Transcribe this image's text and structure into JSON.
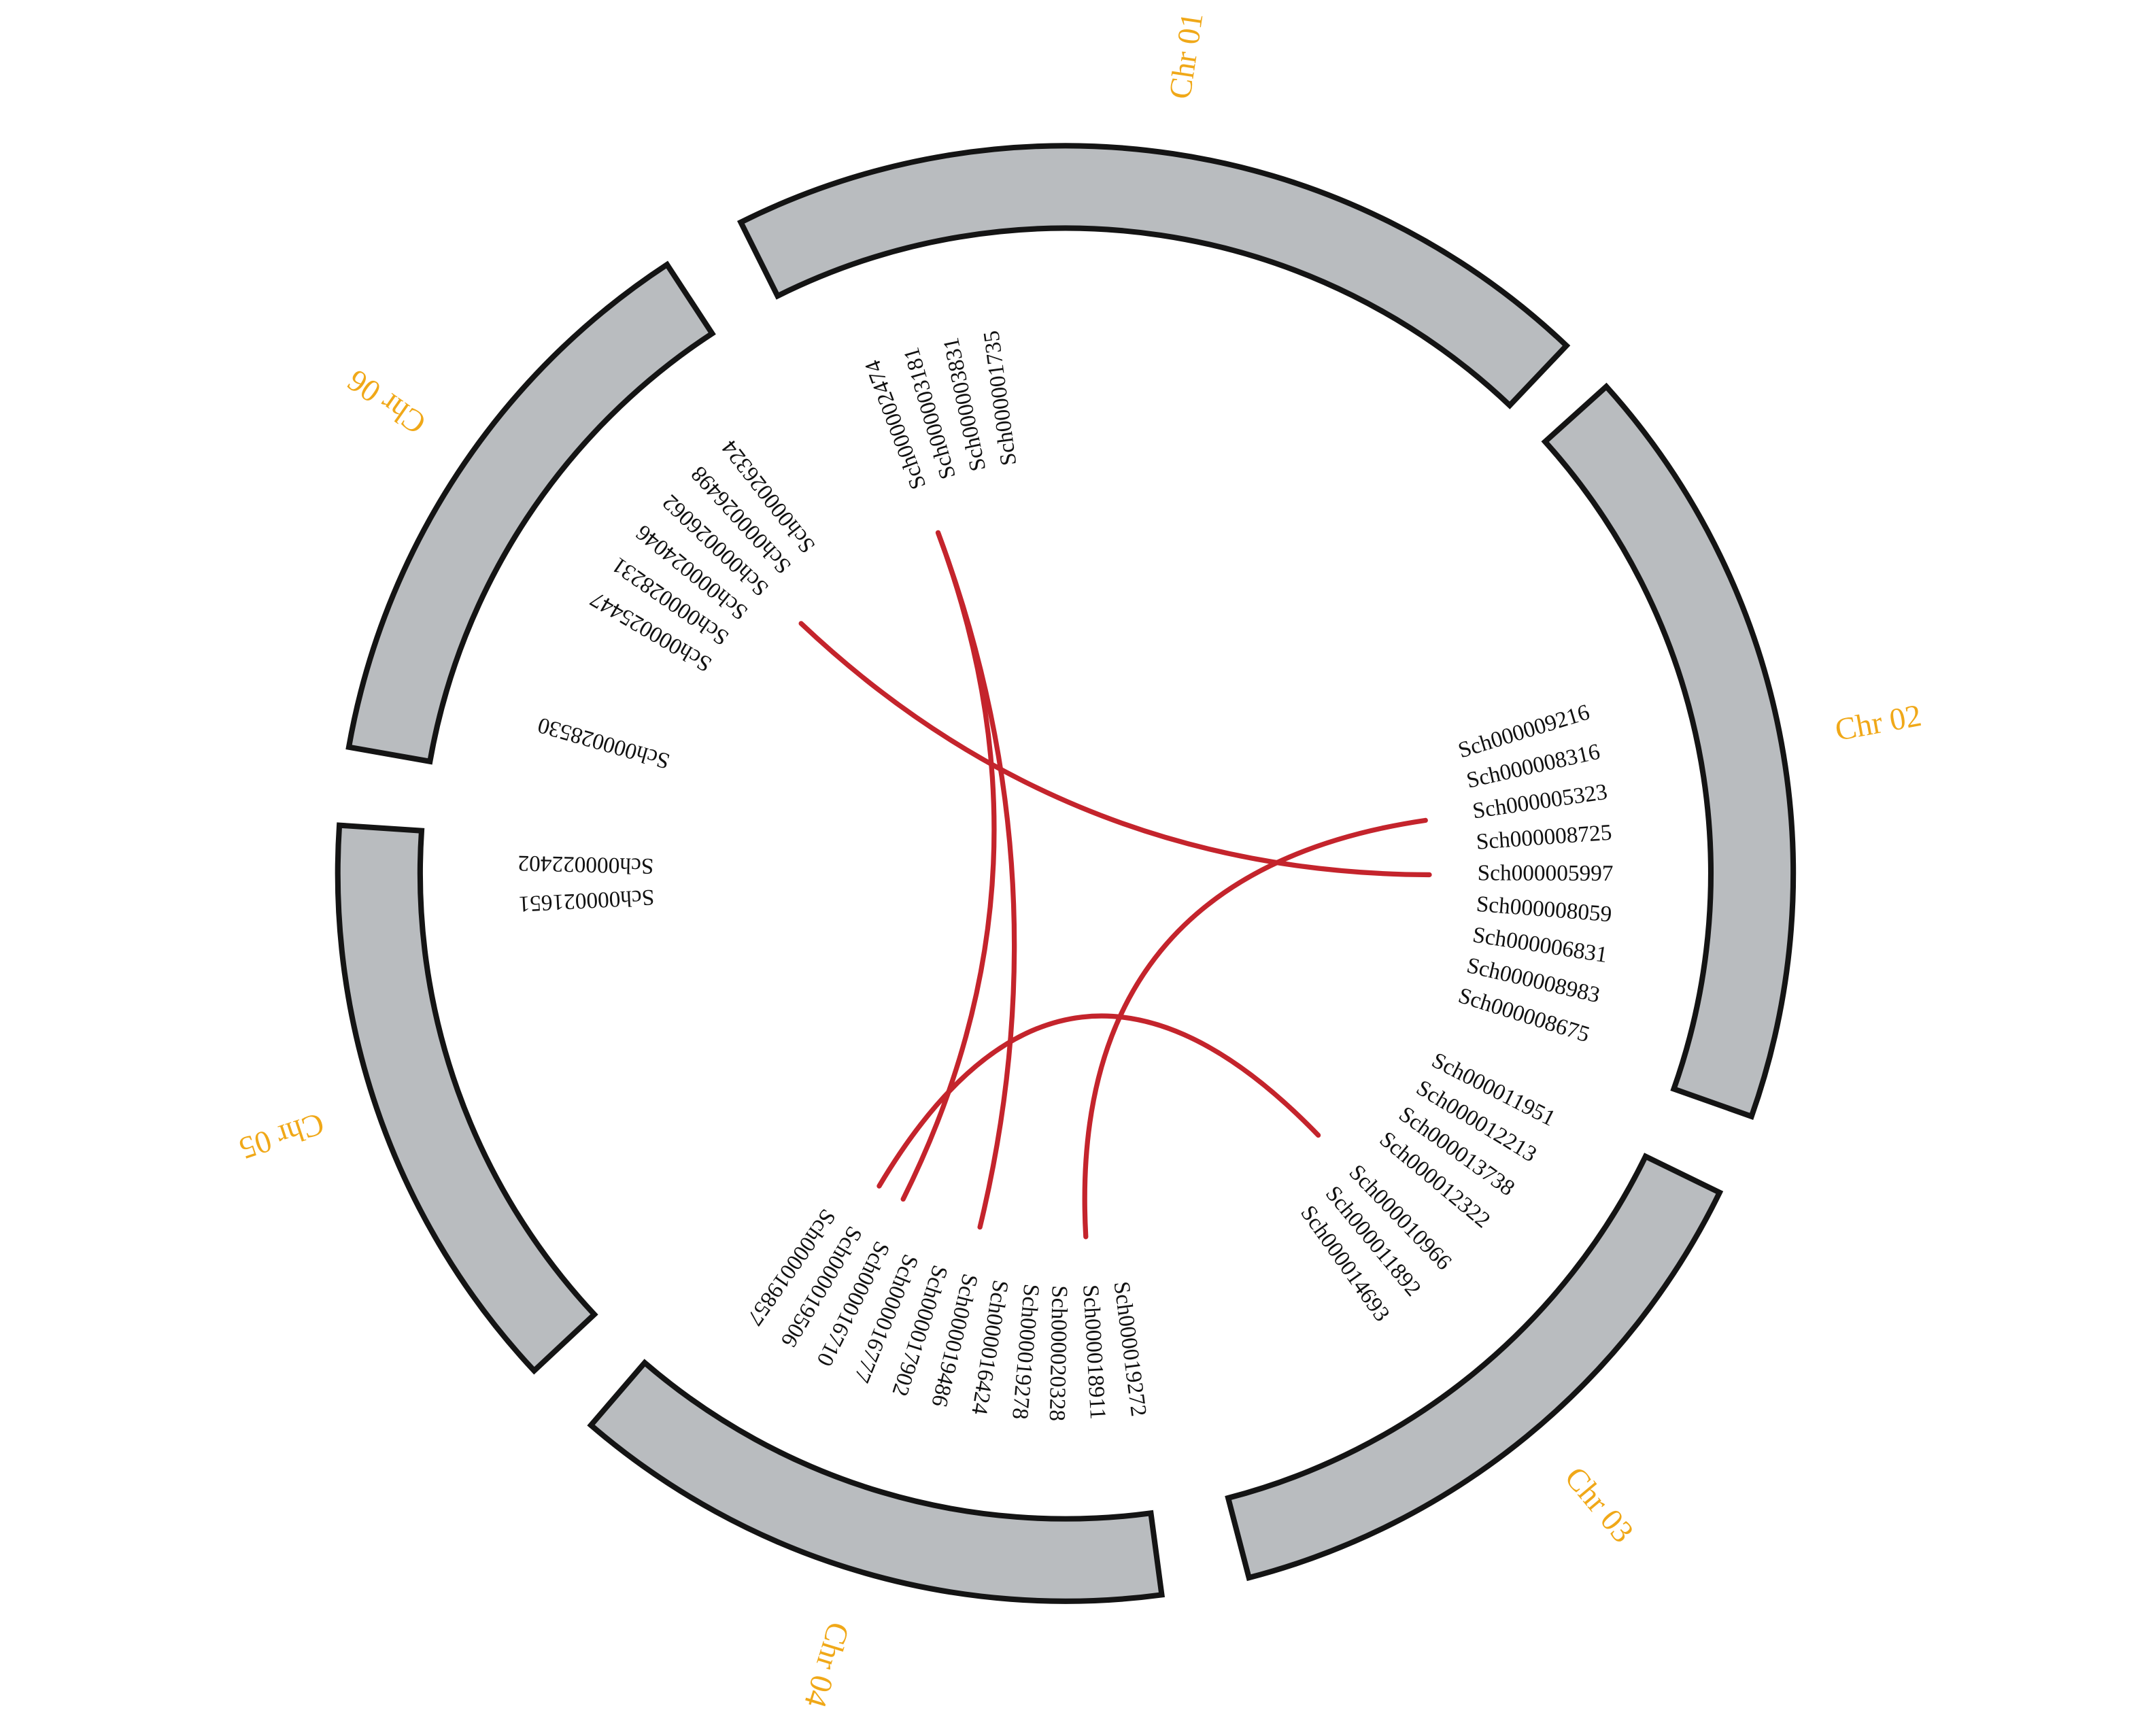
{
  "colors": {
    "chromosome_fill": "#b9bcbf",
    "chromosome_stroke": "#141414",
    "chromosome_label": "#f0a818",
    "link": "#c4242c",
    "gene_label": "#111111"
  },
  "chromosomes": [
    {
      "id": "chr01",
      "label": "Chr 01",
      "genes": [
        "Sch000002474",
        "Sch000003181",
        "Sch000003831",
        "Sch000001735"
      ]
    },
    {
      "id": "chr02",
      "label": "Chr 02",
      "genes": [
        "Sch000009216",
        "Sch000008316",
        "Sch000005323",
        "Sch000008725",
        "Sch000005997",
        "Sch000008059",
        "Sch000006831",
        "Sch000008983",
        "Sch000008675"
      ]
    },
    {
      "id": "chr03",
      "label": "Chr 03",
      "genes": [
        "Sch000011951",
        "Sch000012213",
        "Sch000013738",
        "Sch000012322",
        "Sch000010966",
        "Sch000011892",
        "Sch000014693"
      ]
    },
    {
      "id": "chr04",
      "label": "Chr 04",
      "genes": [
        "Sch000019272",
        "Sch000018911",
        "Sch000020328",
        "Sch000019278",
        "Sch000016424",
        "Sch000019486",
        "Sch000017902",
        "Sch000016777",
        "Sch000016710",
        "Sch000019506",
        "Sch000019857"
      ]
    },
    {
      "id": "chr05",
      "label": "Chr 05",
      "genes": [
        "Sch000021651",
        "Sch000022402"
      ]
    },
    {
      "id": "chr06",
      "label": "Chr 06",
      "genes": [
        "Sch000028530",
        "Sch000025447",
        "Sch000028231",
        "Sch000024046",
        "Sch000026062",
        "Sch000026498",
        "Sch000026324"
      ]
    }
  ],
  "links": [
    {
      "from": "Sch000026062",
      "to": "Sch000005997"
    },
    {
      "from": "Sch000005323",
      "to": "Sch000018911"
    },
    {
      "from": "Sch000002474",
      "to": "Sch000019486"
    },
    {
      "from": "Sch000002474",
      "to": "Sch000016710"
    },
    {
      "from": "Sch000010966",
      "to": "Sch000019506"
    }
  ]
}
